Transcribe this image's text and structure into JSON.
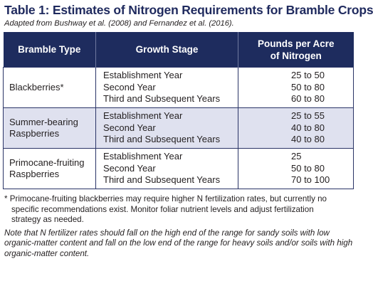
{
  "title": "Table 1: Estimates of Nitrogen Requirements for Bramble Crops",
  "source": "Adapted from Bushway et al. (2008) and Fernandez et al. (2016).",
  "table": {
    "headers": {
      "type": "Bramble Type",
      "stage": "Growth Stage",
      "rate_line1": "Pounds per Acre",
      "rate_line2": "of Nitrogen"
    },
    "rows": [
      {
        "type_lines": [
          "Blackberries*",
          ""
        ],
        "stages": [
          "Establishment Year",
          "Second Year",
          "Third and Subsequent Years"
        ],
        "rates": [
          "25 to 50",
          "50 to 80",
          "60 to 80"
        ]
      },
      {
        "type_lines": [
          "Summer-bearing",
          "Raspberries"
        ],
        "stages": [
          "Establishment Year",
          "Second Year",
          "Third and Subsequent Years"
        ],
        "rates": [
          "25 to 55",
          "40 to 80",
          "40 to 80"
        ]
      },
      {
        "type_lines": [
          "Primocane-fruiting",
          "Raspberries"
        ],
        "stages": [
          "Establishment Year",
          "Second Year",
          "Third and Subsequent Years"
        ],
        "rates": [
          "25",
          "50 to 80",
          "70 to 100"
        ]
      }
    ]
  },
  "footnote": {
    "line1": "* Primocane-fruiting blackberries may require higher N fertilization rates, but currently no",
    "line2": "specific recommendations exist. Monitor foliar nutrient levels and adjust fertilization",
    "line3": "strategy as needed."
  },
  "note": {
    "line1": "Note that N fertilizer rates should fall on the high end of the range for sandy soils with low",
    "line2": "organic-matter content and fall on the low end of the range for heavy soils and/or soils with high",
    "line3": "organic-matter content."
  },
  "colors": {
    "header_bg": "#1e2c5e",
    "title": "#1f2a5e",
    "shaded_row": "#dfe1ef"
  }
}
